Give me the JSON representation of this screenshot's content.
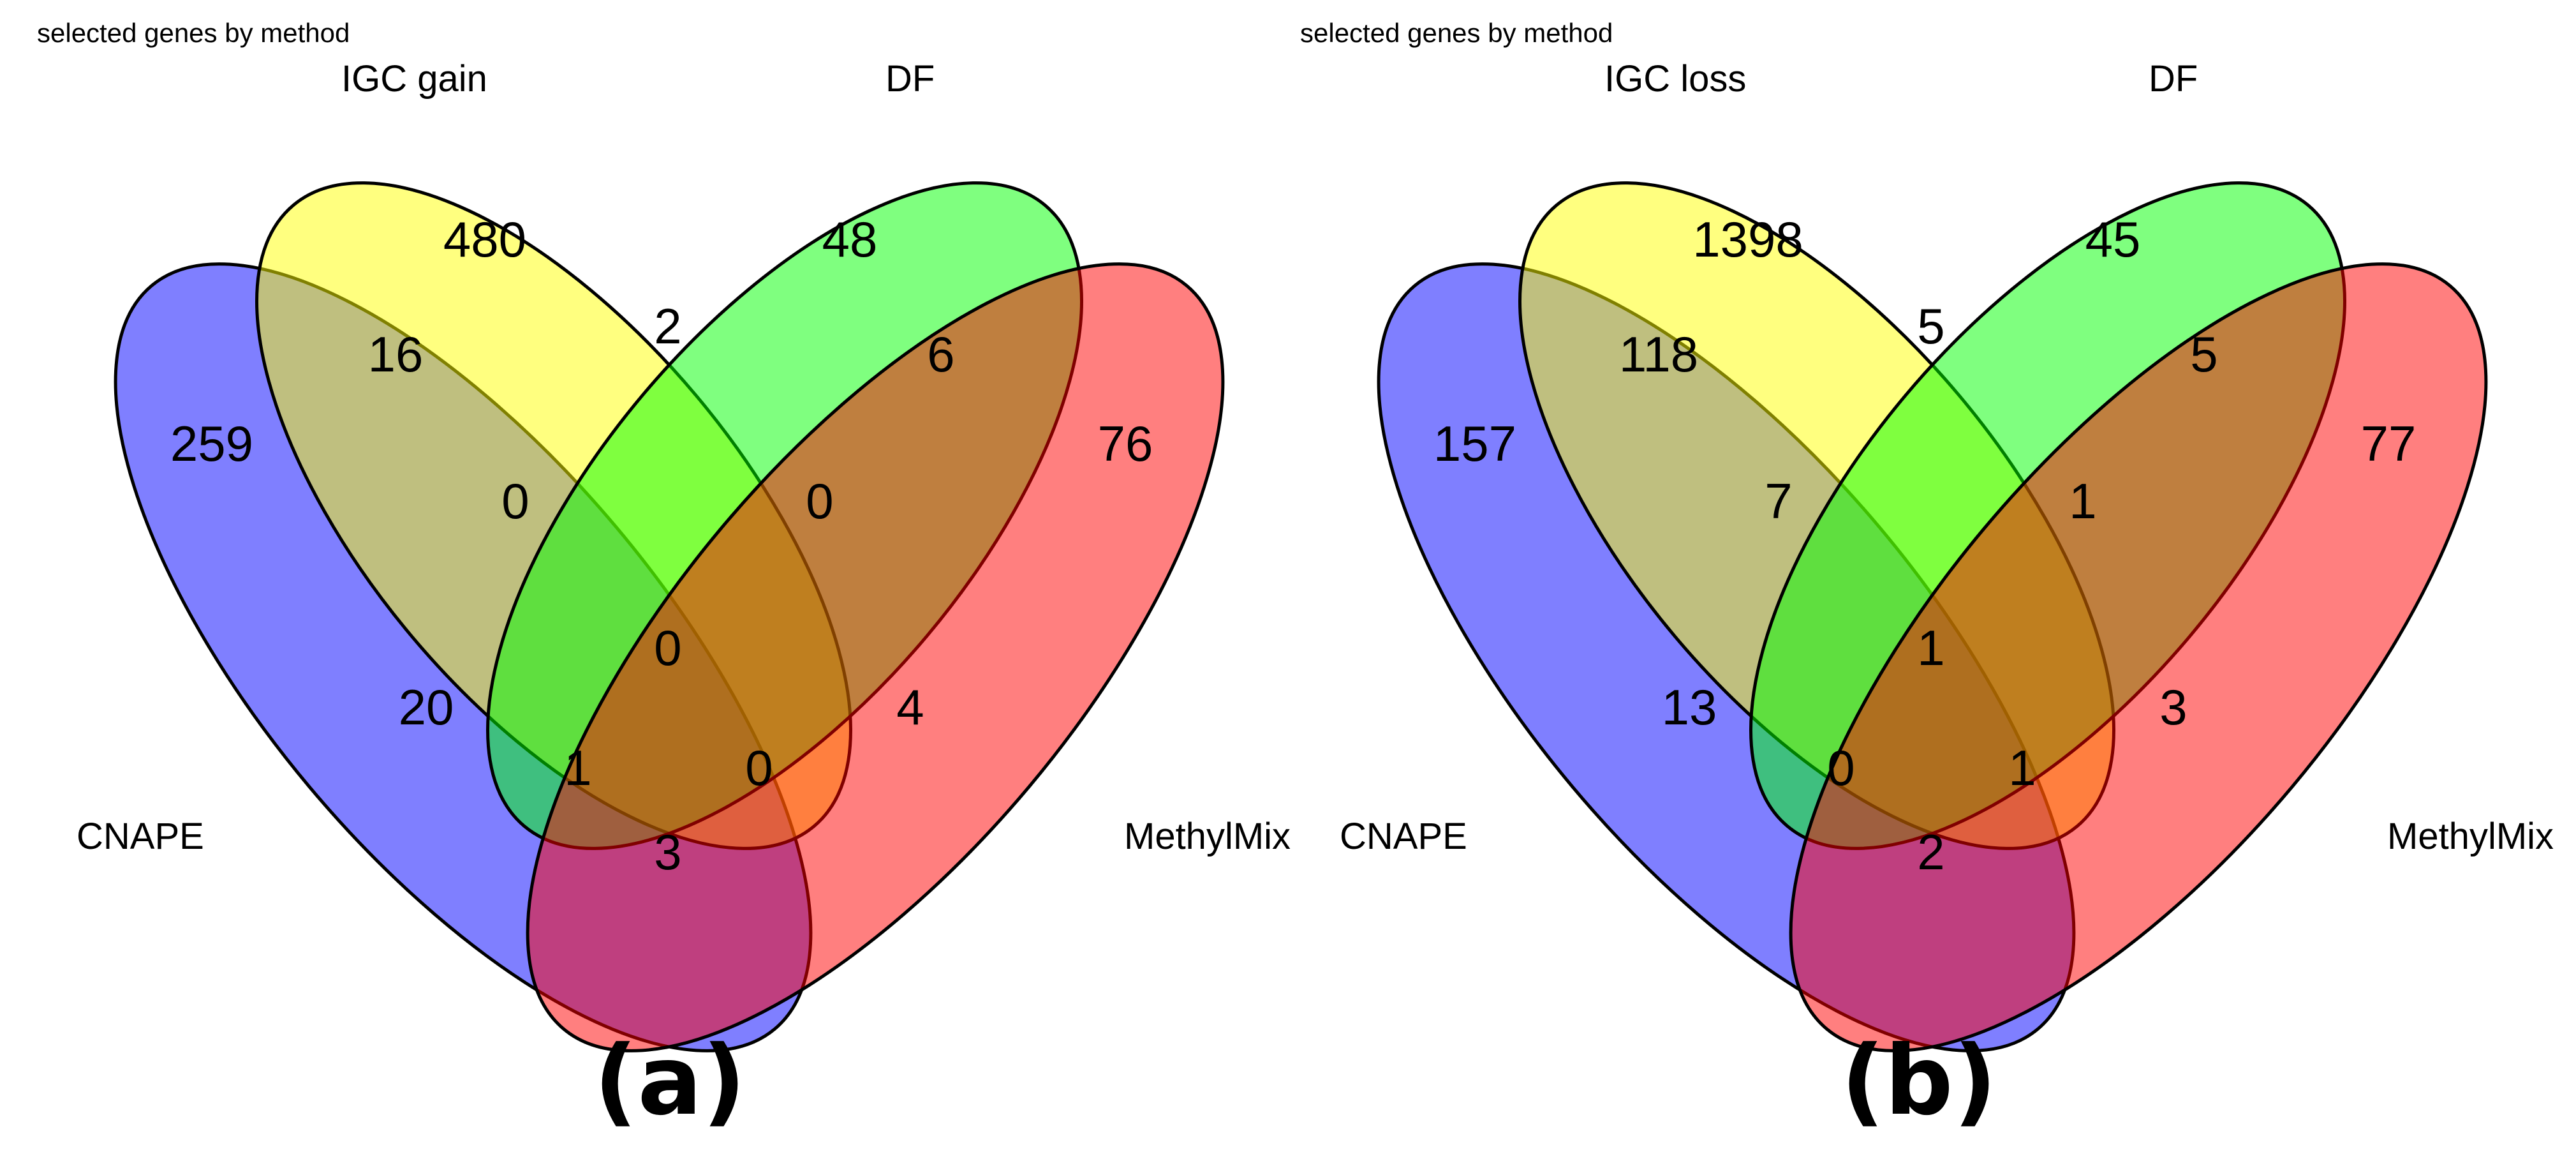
{
  "colors": {
    "CNAPE": "#0000FF",
    "IGC": "#FFFF00",
    "DF": "#00FF00",
    "MethylMix": "#FF0000"
  },
  "panels": [
    {
      "id": "a",
      "subtitle": "selected genes by method",
      "panel_label": "(a)",
      "set_labels": {
        "CNAPE": "CNAPE",
        "IGC": "IGC  gain",
        "DF": "DF",
        "MethylMix": "MethylMix"
      },
      "counts": {
        "C": "259",
        "I": "480",
        "D": "48",
        "M": "76",
        "CI": "16",
        "ID": "2",
        "DM": "6",
        "CID": "0",
        "IDM": "0",
        "CIDM": "0",
        "CD": "20",
        "IM": "4",
        "CDM": "1",
        "CIM": "0",
        "CM": "3"
      }
    },
    {
      "id": "b",
      "subtitle": "selected genes by method",
      "panel_label": "(b)",
      "set_labels": {
        "CNAPE": "CNAPE",
        "IGC": "IGC  loss",
        "DF": "DF",
        "MethylMix": "MethylMix"
      },
      "counts": {
        "C": "157",
        "I": "1398",
        "D": "45",
        "M": "77",
        "CI": "118",
        "ID": "5",
        "DM": "5",
        "CID": "7",
        "IDM": "1",
        "CIDM": "1",
        "CD": "13",
        "IM": "3",
        "CDM": "0",
        "CIM": "1",
        "CM": "2"
      }
    }
  ]
}
